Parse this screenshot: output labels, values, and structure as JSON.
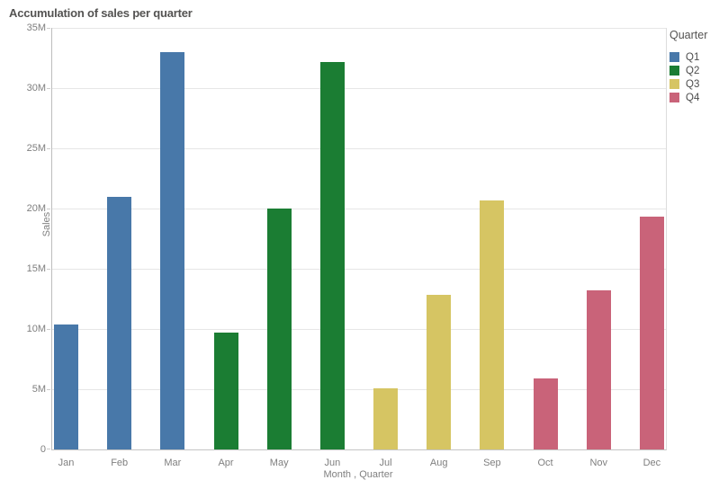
{
  "title": "Accumulation of sales per quarter",
  "chart_data": {
    "type": "bar",
    "title": "Accumulation of sales per quarter",
    "categories": [
      "Jan",
      "Feb",
      "Mar",
      "Apr",
      "May",
      "Jun",
      "Jul",
      "Aug",
      "Sep",
      "Oct",
      "Nov",
      "Dec"
    ],
    "values_millions": [
      10.4,
      21.0,
      33.0,
      9.7,
      20.0,
      32.2,
      5.1,
      12.8,
      20.7,
      5.9,
      13.2,
      19.3
    ],
    "bar_series": [
      "Q1",
      "Q1",
      "Q1",
      "Q2",
      "Q2",
      "Q2",
      "Q3",
      "Q3",
      "Q3",
      "Q4",
      "Q4",
      "Q4"
    ],
    "series": [
      {
        "name": "Q1",
        "color": "#4878a9",
        "months": [
          "Jan",
          "Feb",
          "Mar"
        ],
        "values_millions": [
          10.4,
          21.0,
          33.0
        ]
      },
      {
        "name": "Q2",
        "color": "#1b7d33",
        "months": [
          "Apr",
          "May",
          "Jun"
        ],
        "values_millions": [
          9.7,
          20.0,
          32.2
        ]
      },
      {
        "name": "Q3",
        "color": "#d6c563",
        "months": [
          "Jul",
          "Aug",
          "Sep"
        ],
        "values_millions": [
          5.1,
          12.8,
          20.7
        ]
      },
      {
        "name": "Q4",
        "color": "#c96379",
        "months": [
          "Oct",
          "Nov",
          "Dec"
        ],
        "values_millions": [
          5.9,
          13.2,
          19.3
        ]
      }
    ],
    "xlabel": "Month , Quarter",
    "ylabel": "Sales",
    "ylim": [
      0,
      35000000
    ],
    "ytick_labels": [
      "0",
      "5M",
      "10M",
      "15M",
      "20M",
      "25M",
      "30M",
      "35M"
    ],
    "ytick_step_millions": 5,
    "grid": true,
    "legend": {
      "title": "Quarter",
      "position": "top-right",
      "entries": [
        {
          "label": "Q1",
          "color": "#4878a9"
        },
        {
          "label": "Q2",
          "color": "#1b7d33"
        },
        {
          "label": "Q3",
          "color": "#d6c563"
        },
        {
          "label": "Q4",
          "color": "#c96379"
        }
      ]
    }
  }
}
